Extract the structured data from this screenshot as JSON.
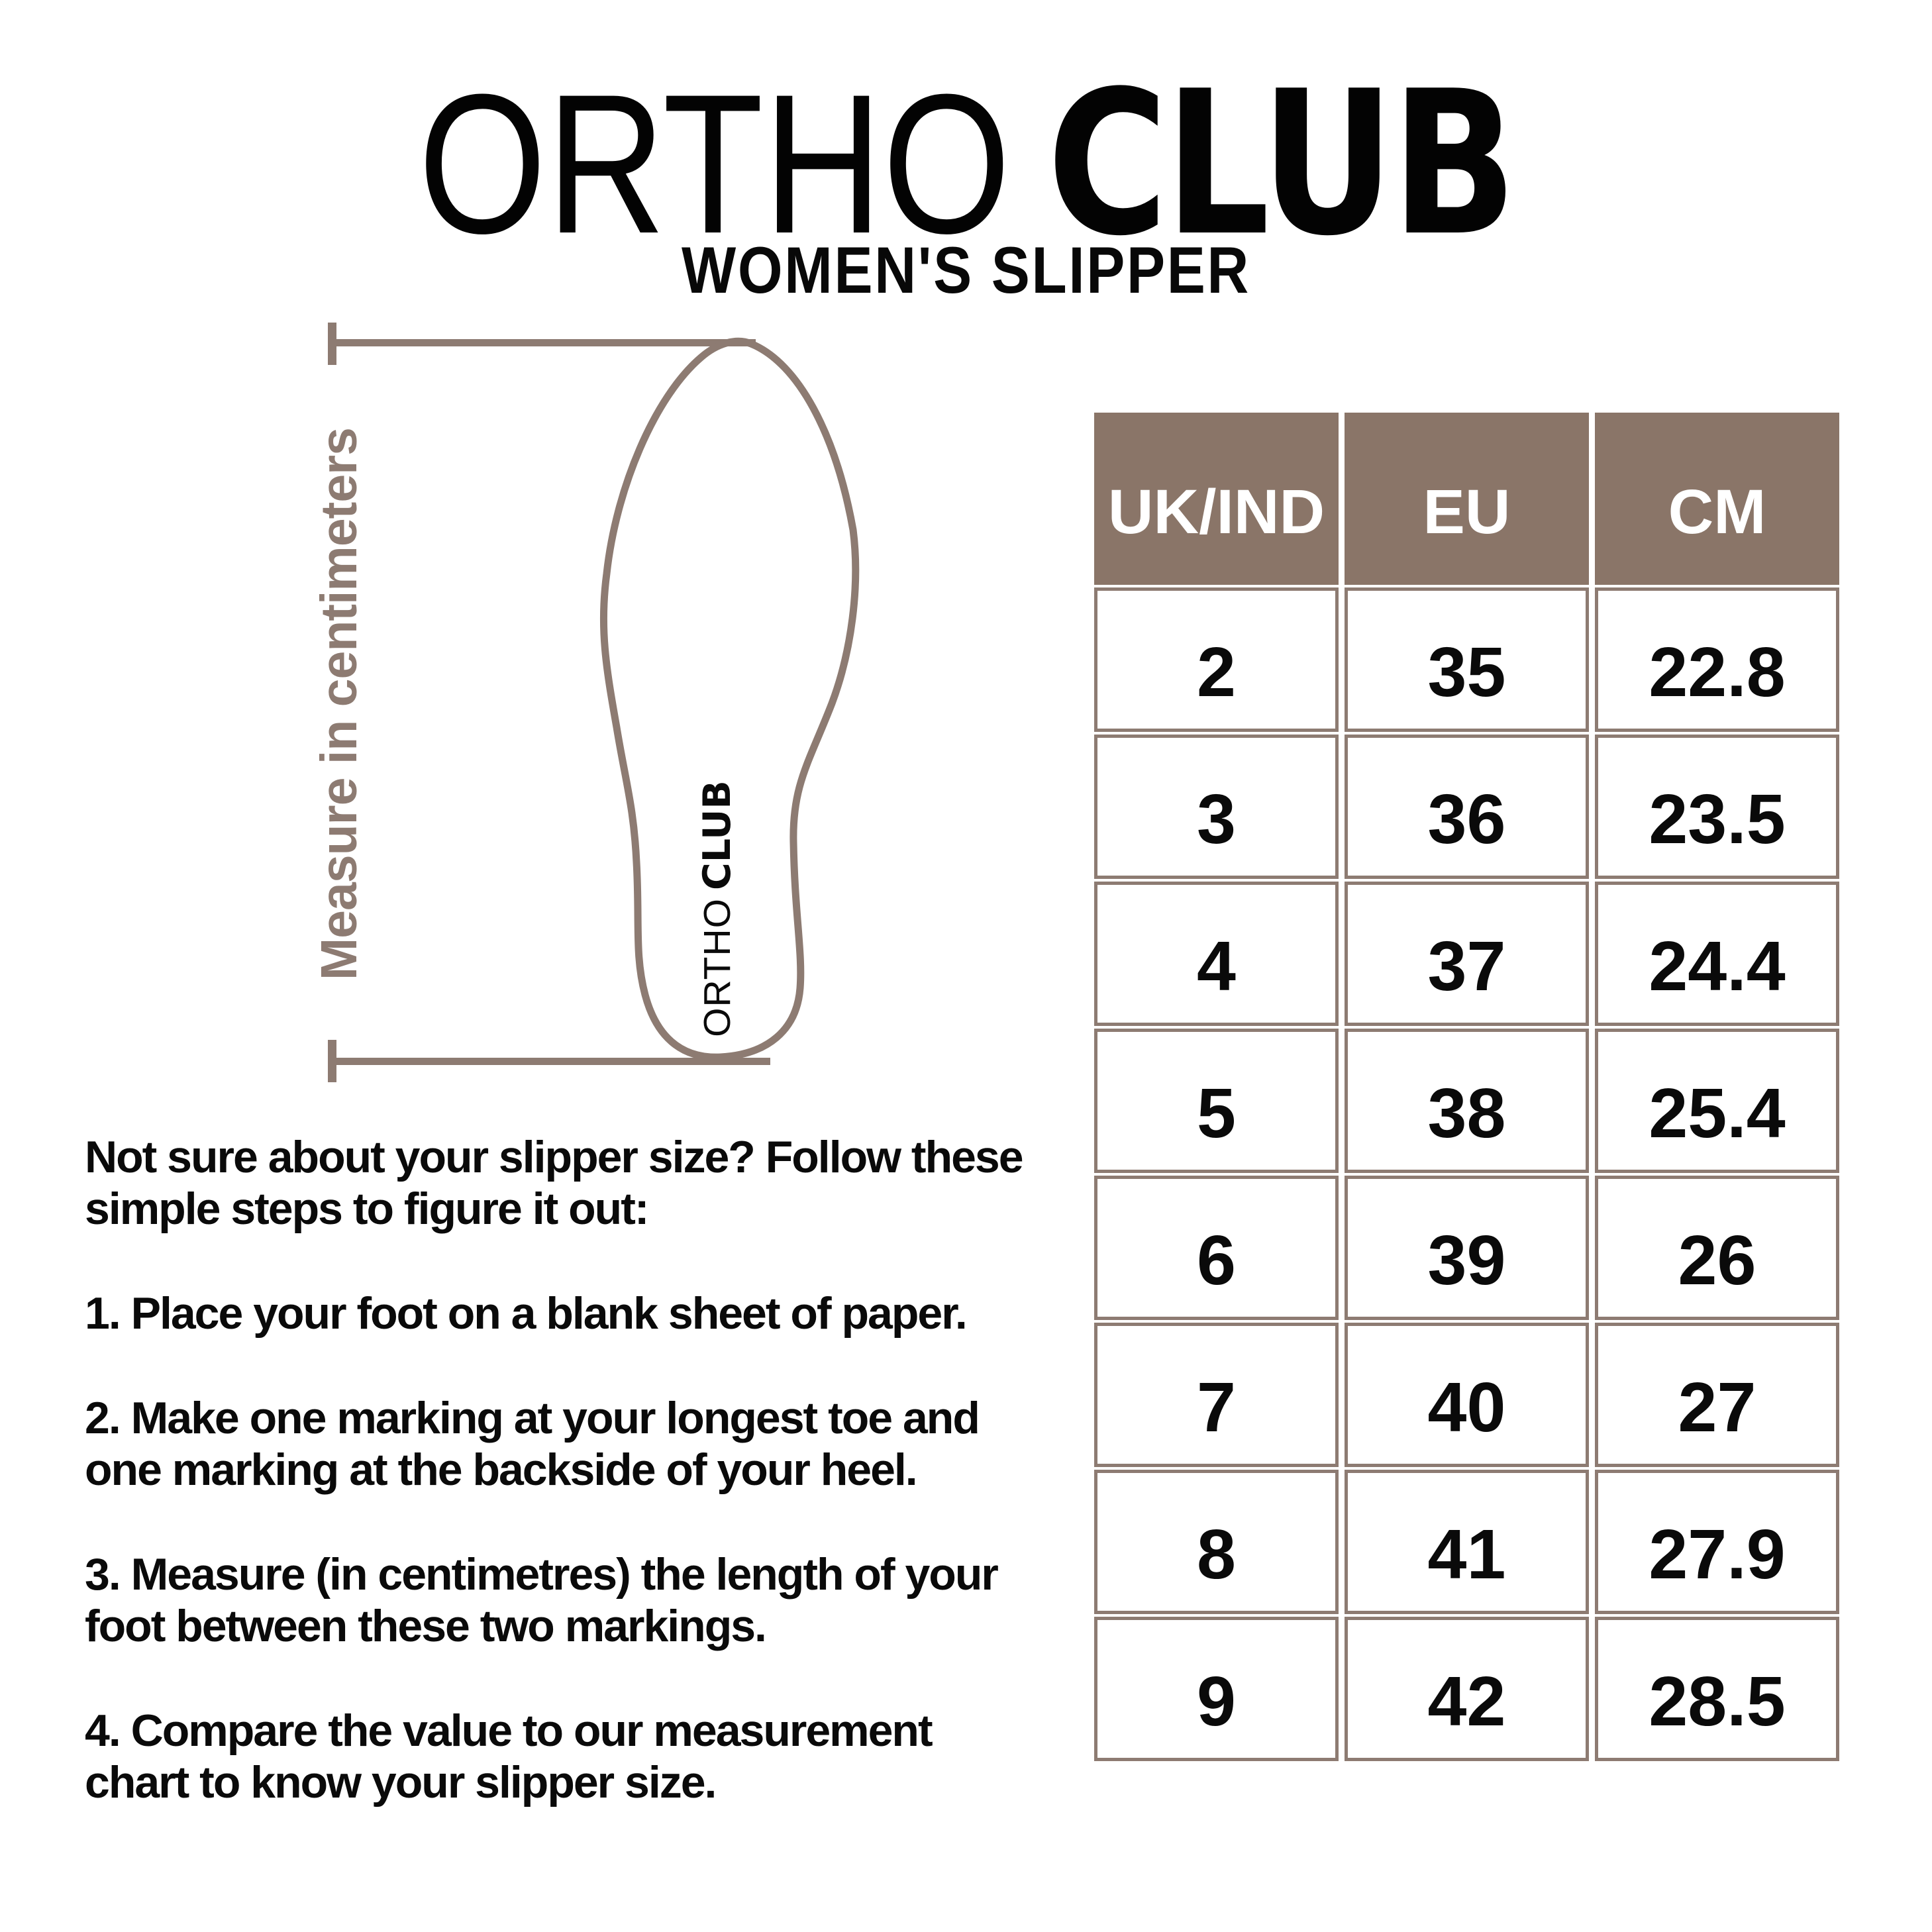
{
  "header": {
    "title_regular": "ORTHO",
    "title_bold": "CLUB",
    "subtitle": "WOMEN'S SLIPPER"
  },
  "diagram": {
    "measure_label": "Measure in centimeters",
    "insole_brand_regular": "ORTHO",
    "insole_brand_bold": "CLUB"
  },
  "instructions": {
    "intro": "Not sure about your slipper size? Follow these\nsimple steps to figure it out:",
    "steps": [
      "1. Place your foot on a blank sheet of paper.",
      "2. Make one marking at your longest toe and\none marking at the backside of your heel.",
      "3. Measure (in centimetres) the length of your\nfoot between these two markings.",
      "4. Compare the value to our measurement\nchart to know your slipper size."
    ]
  },
  "size_chart": {
    "columns": [
      "UK/IND",
      "EU",
      "CM"
    ],
    "rows": [
      [
        "2",
        "35",
        "22.8"
      ],
      [
        "3",
        "36",
        "23.5"
      ],
      [
        "4",
        "37",
        "24.4"
      ],
      [
        "5",
        "38",
        "25.4"
      ],
      [
        "6",
        "39",
        "26"
      ],
      [
        "7",
        "40",
        "27"
      ],
      [
        "8",
        "41",
        "27.9"
      ],
      [
        "9",
        "42",
        "28.5"
      ]
    ]
  },
  "colors": {
    "table_header_bg": "#8A7568",
    "line_brown": "#8D7B72",
    "text": "#0a0a0a",
    "header_text": "#ffffff",
    "background": "#ffffff"
  }
}
